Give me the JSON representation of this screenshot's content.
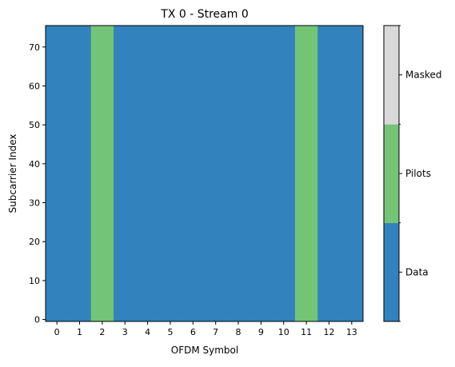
{
  "chart_data": {
    "type": "heatmap",
    "title": "TX 0 - Stream 0",
    "xlabel": "OFDM Symbol",
    "ylabel": "Subcarrier Index",
    "x_categories": [
      "0",
      "1",
      "2",
      "3",
      "4",
      "5",
      "6",
      "7",
      "8",
      "9",
      "10",
      "11",
      "12",
      "13"
    ],
    "y_range": [
      0,
      75
    ],
    "y_ticks": [
      "0",
      "10",
      "20",
      "30",
      "40",
      "50",
      "60",
      "70"
    ],
    "symbol_types": [
      "Data",
      "Data",
      "Pilots",
      "Data",
      "Data",
      "Data",
      "Data",
      "Data",
      "Data",
      "Data",
      "Data",
      "Pilots",
      "Data",
      "Data"
    ],
    "colorbar": {
      "categories": [
        "Data",
        "Pilots",
        "Masked"
      ],
      "colors": [
        "#3182bd",
        "#74c476",
        "#d9d9d9"
      ]
    }
  }
}
